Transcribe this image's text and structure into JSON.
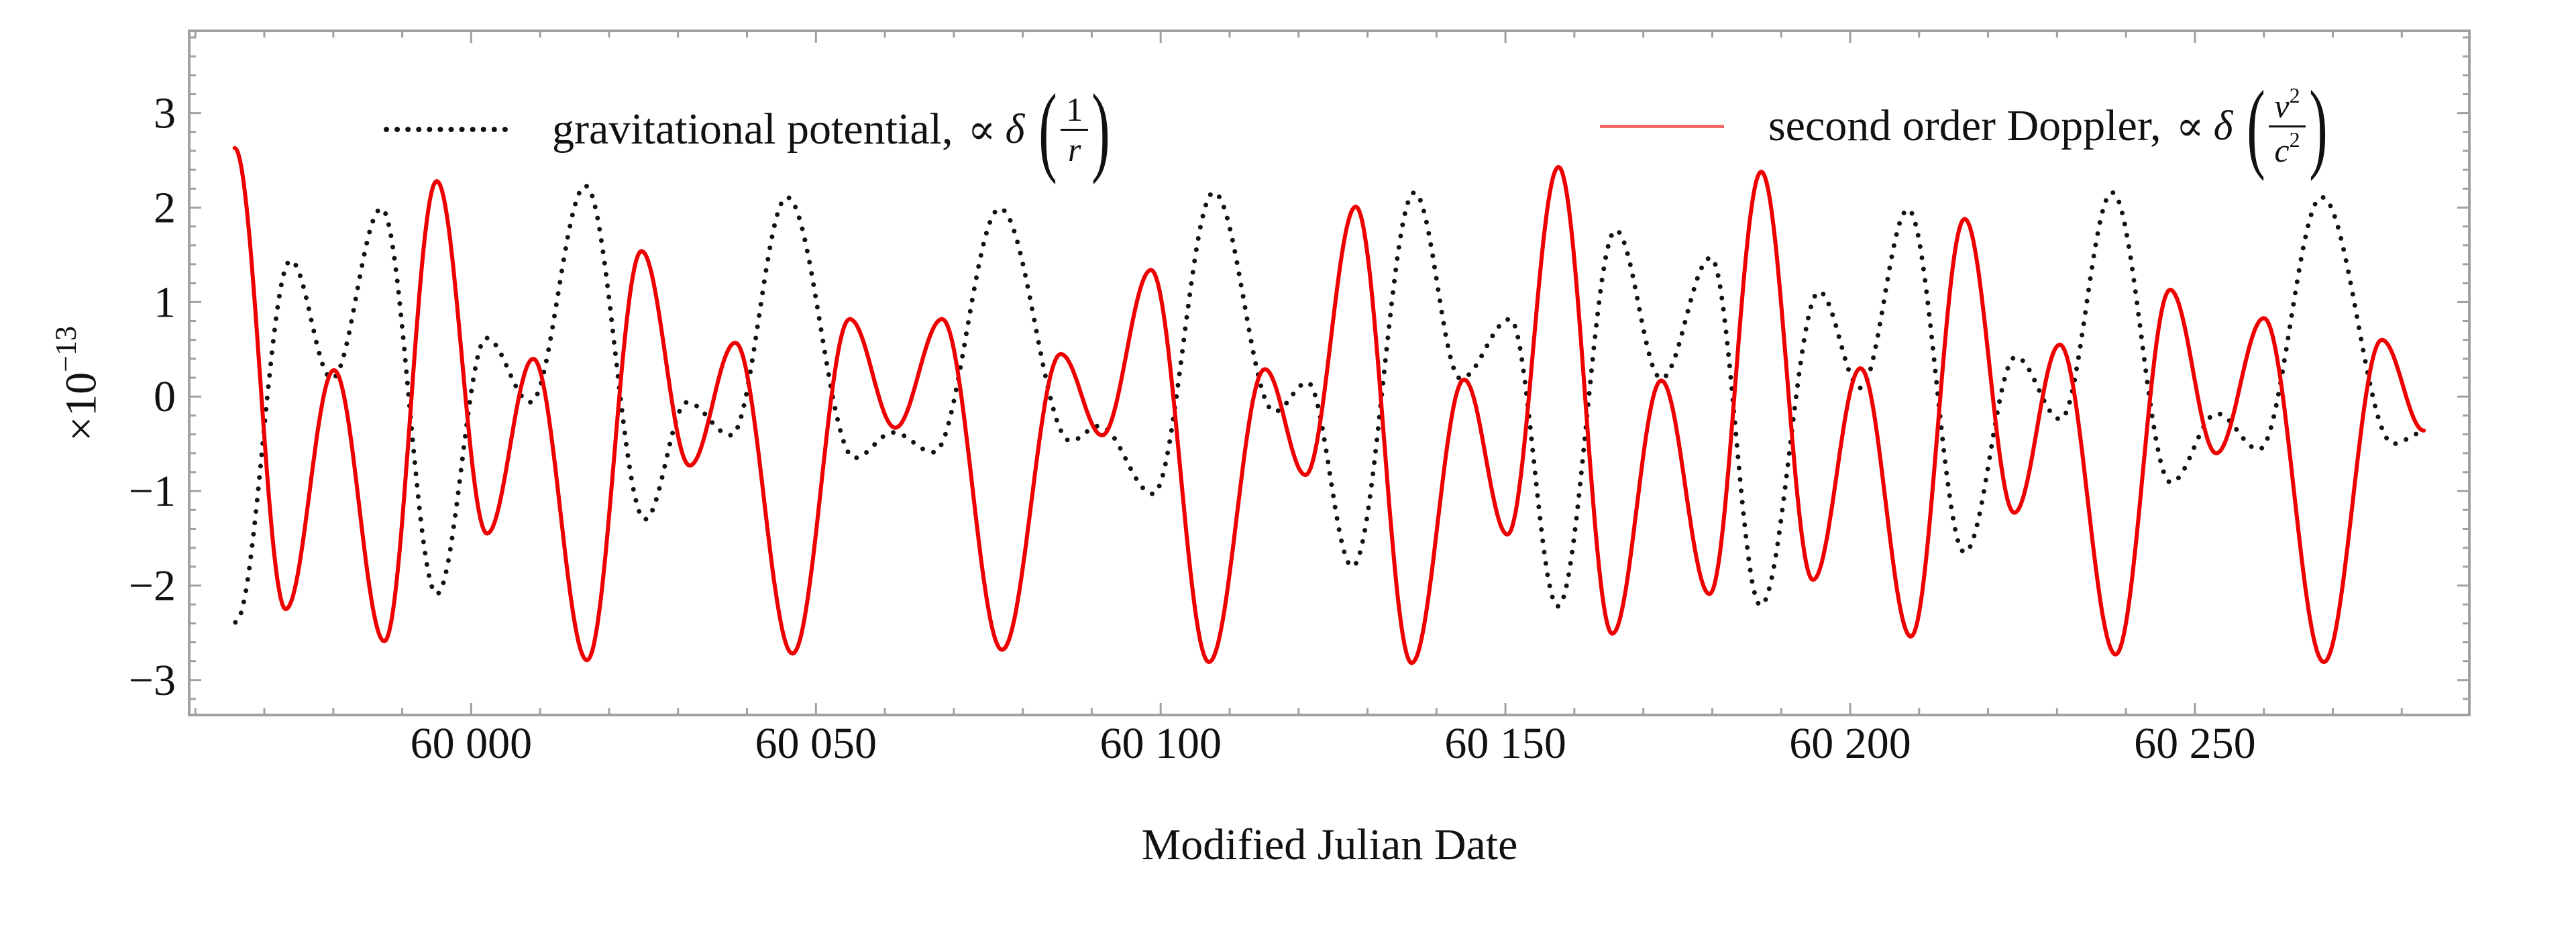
{
  "chart_data": {
    "type": "line",
    "title": "",
    "xlabel": "Modified Julian Date",
    "ylabel": {
      "base": "×10",
      "exponent": "−13"
    },
    "xlim": [
      59959.1,
      60289.8
    ],
    "ylim": [
      -3.37,
      3.87
    ],
    "grid": false,
    "legend_placement": "top",
    "xticks": {
      "values": [
        60000,
        60050,
        60100,
        60150,
        60200,
        60250
      ],
      "labels": [
        "60 000",
        "60 050",
        "60 100",
        "60 150",
        "60 200",
        "60 250"
      ],
      "minor_step": 10
    },
    "yticks": {
      "values": [
        -3,
        -2,
        -1,
        0,
        1,
        2,
        3
      ],
      "labels": [
        "−3",
        "−2",
        "−1",
        "0",
        "1",
        "2",
        "3"
      ],
      "minor_step": 0.2
    },
    "series": [
      {
        "name": "gravitational potential,",
        "legend_math": {
          "prefix": "∝",
          "delta": "δ",
          "numerator": "1",
          "denominator": "r"
        },
        "color": "#111111",
        "style": "dotted",
        "points": [
          [
            59965.8,
            -2.39
          ],
          [
            59973.8,
            1.44
          ],
          [
            59979.8,
            0.19
          ],
          [
            59987.0,
            1.99
          ],
          [
            59995.0,
            -2.09
          ],
          [
            60002.2,
            0.62
          ],
          [
            60008.6,
            -0.06
          ],
          [
            60016.6,
            2.23
          ],
          [
            60025.2,
            -1.3
          ],
          [
            60031.3,
            -0.06
          ],
          [
            60037.7,
            -0.41
          ],
          [
            60045.8,
            2.11
          ],
          [
            60055.6,
            -0.65
          ],
          [
            60061.2,
            -0.38
          ],
          [
            60067.1,
            -0.59
          ],
          [
            60076.7,
            1.99
          ],
          [
            60086.9,
            -0.47
          ],
          [
            60091.1,
            -0.31
          ],
          [
            60098.9,
            -1.03
          ],
          [
            60107.7,
            2.16
          ],
          [
            60116.5,
            -0.16
          ],
          [
            60121.3,
            0.15
          ],
          [
            60127.8,
            -1.8
          ],
          [
            60136.8,
            2.16
          ],
          [
            60143.5,
            0.19
          ],
          [
            60150.7,
            0.82
          ],
          [
            60157.6,
            -2.22
          ],
          [
            60166.0,
            1.76
          ],
          [
            60172.6,
            0.19
          ],
          [
            60179.8,
            1.47
          ],
          [
            60187.0,
            -2.21
          ],
          [
            60195.5,
            1.11
          ],
          [
            60201.5,
            0.09
          ],
          [
            60208.4,
            1.98
          ],
          [
            60216.6,
            -1.65
          ],
          [
            60224.0,
            0.42
          ],
          [
            60230.5,
            -0.24
          ],
          [
            60238.0,
            2.16
          ],
          [
            60246.5,
            -0.91
          ],
          [
            60253.2,
            -0.18
          ],
          [
            60259.3,
            -0.56
          ],
          [
            60268.4,
            2.11
          ],
          [
            60278.8,
            -0.5
          ],
          [
            60283.1,
            -0.38
          ]
        ]
      },
      {
        "name": "second order Doppler,",
        "legend_math": {
          "prefix": "∝",
          "delta": "δ",
          "numerator": "v",
          "numerator_exp": "2",
          "denominator": "c",
          "denominator_exp": "2"
        },
        "color": "#ee0000",
        "legend_color": "#f46a6a",
        "style": "solid",
        "points": [
          [
            59965.7,
            2.63
          ],
          [
            59973.1,
            -2.25
          ],
          [
            59980.1,
            0.28
          ],
          [
            59987.4,
            -2.59
          ],
          [
            59995.0,
            2.28
          ],
          [
            60002.3,
            -1.45
          ],
          [
            60009.0,
            0.4
          ],
          [
            60016.8,
            -2.79
          ],
          [
            60024.7,
            1.54
          ],
          [
            60031.7,
            -0.73
          ],
          [
            60038.3,
            0.57
          ],
          [
            60046.6,
            -2.72
          ],
          [
            60054.9,
            0.82
          ],
          [
            60061.5,
            -0.33
          ],
          [
            60068.3,
            0.82
          ],
          [
            60077.0,
            -2.68
          ],
          [
            60085.5,
            0.45
          ],
          [
            60091.5,
            -0.41
          ],
          [
            60098.6,
            1.34
          ],
          [
            60107.0,
            -2.81
          ],
          [
            60115.1,
            0.29
          ],
          [
            60121.0,
            -0.83
          ],
          [
            60128.3,
            2.01
          ],
          [
            60136.4,
            -2.82
          ],
          [
            60144.0,
            0.18
          ],
          [
            60150.3,
            -1.46
          ],
          [
            60157.7,
            2.43
          ],
          [
            60165.5,
            -2.51
          ],
          [
            60172.6,
            0.17
          ],
          [
            60179.6,
            -2.09
          ],
          [
            60187.1,
            2.38
          ],
          [
            60194.6,
            -1.94
          ],
          [
            60201.5,
            0.3
          ],
          [
            60208.8,
            -2.54
          ],
          [
            60216.6,
            1.88
          ],
          [
            60223.8,
            -1.23
          ],
          [
            60230.4,
            0.55
          ],
          [
            60238.5,
            -2.73
          ],
          [
            60246.4,
            1.13
          ],
          [
            60253.1,
            -0.6
          ],
          [
            60260.0,
            0.83
          ],
          [
            60268.7,
            -2.81
          ],
          [
            60277.1,
            0.6
          ],
          [
            60283.2,
            -0.36
          ]
        ]
      }
    ]
  }
}
